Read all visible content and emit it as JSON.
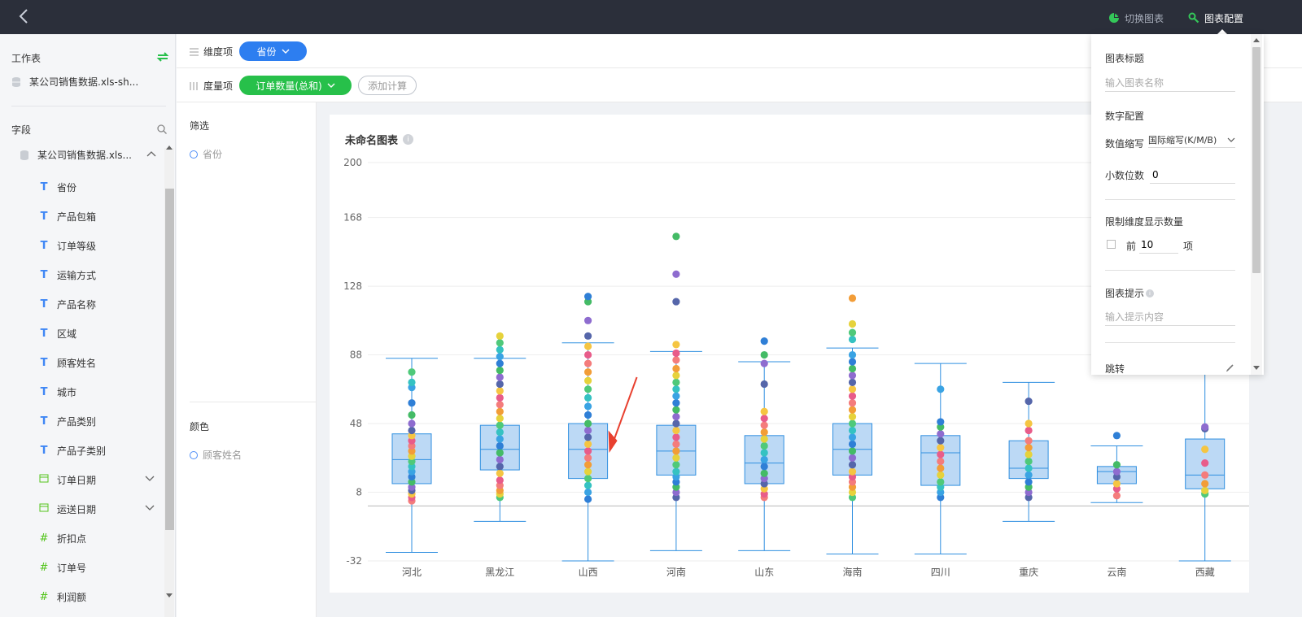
{
  "topbar": {
    "switch_chart_label": "切换图表",
    "chart_config_label": "图表配置"
  },
  "sidebar": {
    "worksheet_label": "工作表",
    "dataset_name": "某公司销售数据.xls-sh...",
    "fields_label": "字段",
    "tree_root": "某公司销售数据.xls...",
    "fields": [
      {
        "label": "省份",
        "type": "text"
      },
      {
        "label": "产品包箱",
        "type": "text"
      },
      {
        "label": "订单等级",
        "type": "text"
      },
      {
        "label": "运输方式",
        "type": "text"
      },
      {
        "label": "产品名称",
        "type": "text"
      },
      {
        "label": "区域",
        "type": "text"
      },
      {
        "label": "顾客姓名",
        "type": "text"
      },
      {
        "label": "城市",
        "type": "text"
      },
      {
        "label": "产品类别",
        "type": "text"
      },
      {
        "label": "产品子类别",
        "type": "text"
      },
      {
        "label": "订单日期",
        "type": "date"
      },
      {
        "label": "运送日期",
        "type": "date"
      },
      {
        "label": "折扣点",
        "type": "number"
      },
      {
        "label": "订单号",
        "type": "number"
      },
      {
        "label": "利润额",
        "type": "number"
      }
    ]
  },
  "dimension": {
    "label": "维度项",
    "pill": "省份"
  },
  "measure": {
    "label": "度量项",
    "pill": "订单数量(总和)",
    "add_calc": "添加计算"
  },
  "filter": {
    "title": "筛选",
    "item": "省份",
    "color_title": "颜色",
    "color_item": "顾客姓名"
  },
  "chart": {
    "title": "未命名图表",
    "info_icon": "i"
  },
  "config": {
    "chart_title_label": "图表标题",
    "chart_title_placeholder": "输入图表名称",
    "number_config_label": "数字配置",
    "abbrev_label": "数值缩写",
    "abbrev_value": "国际缩写(K/M/B)",
    "decimals_label": "小数位数",
    "decimals_value": "0",
    "limit_label": "限制维度显示数量",
    "top_prefix": "前",
    "top_value": "10",
    "top_suffix": "项",
    "tooltip_label": "图表提示",
    "tooltip_placeholder": "输入提示内容",
    "jump_label": "跳转"
  },
  "colors": {
    "topbar": "#2b2f3a",
    "blue_pill": "#2d7ef0",
    "green_pill": "#27c04a",
    "box_fill": "#bcd9f5",
    "box_stroke": "#2f8fe0"
  },
  "chart_data": {
    "type": "boxplot",
    "title": "未命名图表",
    "categories": [
      "河北",
      "黑龙江",
      "山西",
      "河南",
      "山东",
      "海南",
      "四川",
      "重庆",
      "云南",
      "西藏"
    ],
    "y_ticks": [
      200,
      168,
      128,
      88,
      48,
      8,
      -32
    ],
    "ylim": [
      -32,
      200
    ],
    "boxes": [
      {
        "min": -27,
        "q1": 13,
        "median": 27,
        "q3": 42,
        "max": 86,
        "points": [
          3,
          5,
          7,
          9,
          11,
          14,
          17,
          20,
          23,
          26,
          29,
          32,
          35,
          38,
          41,
          44,
          48,
          53,
          60,
          69,
          72,
          78
        ]
      },
      {
        "min": -9,
        "q1": 21,
        "median": 33,
        "q3": 47,
        "max": 86,
        "points": [
          5,
          7,
          9,
          12,
          15,
          19,
          23,
          27,
          31,
          35,
          39,
          43,
          47,
          51,
          55,
          59,
          63,
          67,
          71,
          75,
          79,
          83,
          87,
          91,
          95,
          99
        ]
      },
      {
        "min": -32,
        "q1": 16,
        "median": 33,
        "q3": 48,
        "max": 95,
        "points": [
          4,
          8,
          12,
          16,
          20,
          24,
          28,
          32,
          36,
          40,
          44,
          48,
          53,
          58,
          63,
          68,
          73,
          78,
          83,
          88,
          93,
          99,
          108,
          119,
          122
        ]
      },
      {
        "min": -26,
        "q1": 18,
        "median": 32,
        "q3": 47,
        "max": 90,
        "points": [
          5,
          8,
          11,
          14,
          17,
          20,
          24,
          28,
          32,
          36,
          40,
          44,
          48,
          52,
          56,
          60,
          64,
          68,
          72,
          76,
          80,
          85,
          89,
          94,
          119,
          135,
          157
        ]
      },
      {
        "min": -26,
        "q1": 13,
        "median": 25,
        "q3": 41,
        "max": 84,
        "points": [
          5,
          7,
          10,
          13,
          16,
          19,
          23,
          27,
          31,
          35,
          39,
          43,
          47,
          51,
          55,
          71,
          83,
          88,
          96
        ]
      },
      {
        "min": -28,
        "q1": 18,
        "median": 33,
        "q3": 48,
        "max": 92,
        "points": [
          5,
          8,
          11,
          14,
          17,
          20,
          24,
          28,
          32,
          36,
          40,
          44,
          48,
          52,
          56,
          60,
          64,
          68,
          72,
          76,
          80,
          84,
          88,
          97,
          101,
          106,
          121
        ]
      },
      {
        "min": -28,
        "q1": 12,
        "median": 31,
        "q3": 41,
        "max": 83,
        "points": [
          5,
          8,
          11,
          14,
          18,
          22,
          26,
          30,
          34,
          38,
          42,
          46,
          49,
          68
        ]
      },
      {
        "min": -9,
        "q1": 16,
        "median": 22,
        "q3": 38,
        "max": 72,
        "points": [
          5,
          8,
          11,
          14,
          18,
          22,
          26,
          30,
          34,
          38,
          44,
          48,
          61
        ]
      },
      {
        "min": 2,
        "q1": 13,
        "median": 20,
        "q3": 23,
        "max": 35,
        "points": [
          6,
          10,
          13,
          17,
          20,
          24,
          41
        ]
      },
      {
        "min": -32,
        "q1": 10,
        "median": 18,
        "q3": 39,
        "max": 78,
        "points": [
          7,
          9,
          13,
          18,
          25,
          33,
          45,
          46
        ]
      }
    ]
  }
}
